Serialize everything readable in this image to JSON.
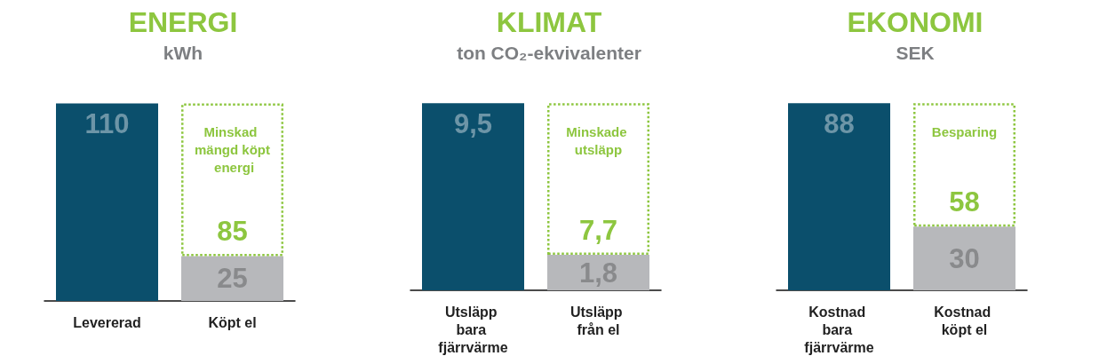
{
  "chart_data": [
    {
      "type": "bar",
      "title": "ENERGI",
      "subtitle": "kWh",
      "categories": [
        "Levererad",
        "Köpt el"
      ],
      "stacked": true,
      "data_labels": true,
      "series": [
        {
          "colors": [
            "#0b4f6c",
            "#b7b8bb"
          ],
          "values": [
            110,
            25
          ]
        },
        {
          "name": "Minskad mängd köpt energi",
          "color": "#8dc63f",
          "line_style": "dotted",
          "values": [
            null,
            85
          ]
        }
      ]
    },
    {
      "type": "bar",
      "title": "KLIMAT",
      "subtitle": "ton CO₂-ekvivalenter",
      "categories": [
        "Utsläpp bara fjärrvärme",
        "Utsläpp från el"
      ],
      "stacked": true,
      "data_labels": true,
      "series": [
        {
          "colors": [
            "#0b4f6c",
            "#b7b8bb"
          ],
          "values": [
            9.5,
            1.8
          ],
          "value_labels": [
            "9,5",
            "1,8"
          ]
        },
        {
          "name": "Minskade utsläpp",
          "color": "#8dc63f",
          "line_style": "dotted",
          "values": [
            null,
            7.7
          ],
          "value_labels": [
            null,
            "7,7"
          ]
        }
      ]
    },
    {
      "type": "bar",
      "title": "EKONOMI",
      "subtitle": "SEK",
      "categories": [
        "Kostnad bara fjärrvärme",
        "Kostnad köpt el"
      ],
      "stacked": true,
      "data_labels": true,
      "series": [
        {
          "colors": [
            "#0b4f6c",
            "#b7b8bb"
          ],
          "values": [
            88,
            30
          ]
        },
        {
          "name": "Besparing",
          "color": "#8dc63f",
          "line_style": "dotted",
          "values": [
            null,
            58
          ]
        }
      ]
    }
  ]
}
